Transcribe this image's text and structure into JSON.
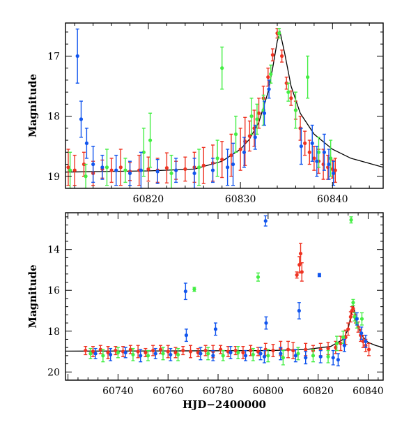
{
  "colors": {
    "red": "#ee3322",
    "green": "#44ee44",
    "blue": "#1155ee",
    "model": "#000000"
  },
  "chart_data": [
    {
      "type": "scatter",
      "title": "",
      "xlabel": "",
      "ylabel": "Magnitude",
      "xlim": [
        60811,
        60845.5
      ],
      "ylim": [
        16.45,
        19.2
      ],
      "y_inverted": true,
      "x_ticks": [
        60820,
        60830,
        60840
      ],
      "x_tick_labels": [
        "60820",
        "60830",
        "60840"
      ],
      "y_ticks": [
        17,
        18,
        19
      ],
      "y_tick_labels": [
        "17",
        "18",
        "19"
      ],
      "grid": false,
      "legend": "none",
      "model_curve": {
        "color": "model",
        "x": [
          60811,
          60815,
          60820,
          60825,
          60828,
          60830,
          60831,
          60832,
          60833,
          60833.5,
          60834.0,
          60834.3,
          60834.8,
          60835.5,
          60836.5,
          60838,
          60840,
          60842,
          60845.5
        ],
        "y": [
          18.93,
          18.92,
          18.91,
          18.88,
          18.75,
          18.55,
          18.38,
          18.1,
          17.6,
          17.2,
          16.75,
          16.6,
          16.95,
          17.5,
          17.95,
          18.3,
          18.55,
          18.7,
          18.85
        ]
      },
      "series": [
        {
          "name": "",
          "color": "red",
          "x": [
            60811.3,
            60812,
            60813,
            60814,
            60815,
            60816,
            60817,
            60818,
            60819,
            60820,
            60821,
            60822,
            60823,
            60824,
            60825,
            60826,
            60827,
            60828,
            60829,
            60830,
            60830.5,
            60831,
            60831.5,
            60832,
            60832.5,
            60833,
            60833.5,
            60834,
            60834.5,
            60835,
            60835.5,
            60836,
            60836.5,
            60837,
            60837.5,
            60838,
            60838.5,
            60839,
            60839.5,
            60840,
            60840.3
          ],
          "y": [
            18.85,
            18.9,
            18.8,
            18.95,
            18.88,
            18.9,
            18.85,
            18.92,
            18.9,
            18.88,
            18.9,
            18.86,
            18.9,
            18.88,
            18.85,
            18.82,
            18.78,
            18.72,
            18.65,
            18.55,
            18.42,
            18.33,
            18.2,
            17.95,
            17.7,
            17.35,
            16.98,
            16.62,
            17.0,
            17.45,
            17.7,
            17.9,
            18.2,
            18.45,
            18.6,
            18.7,
            18.75,
            18.8,
            18.85,
            18.88,
            18.9
          ],
          "err": [
            0.3,
            0.25,
            0.2,
            0.2,
            0.15,
            0.2,
            0.3,
            0.15,
            0.25,
            0.2,
            0.2,
            0.25,
            0.15,
            0.2,
            0.25,
            0.3,
            0.3,
            0.3,
            0.35,
            0.35,
            0.4,
            0.25,
            0.3,
            0.25,
            0.2,
            0.15,
            0.1,
            0.08,
            0.1,
            0.1,
            0.12,
            0.15,
            0.2,
            0.2,
            0.2,
            0.2,
            0.2,
            0.25,
            0.2,
            0.15,
            0.2
          ]
        },
        {
          "name": "",
          "color": "green",
          "x": [
            60811.5,
            60813.2,
            60815.5,
            60817.5,
            60819.5,
            60820.2,
            60822.5,
            60825.5,
            60827.5,
            60828,
            60829.5,
            60831.2,
            60831.8,
            60832.5,
            60833.3,
            60834.2,
            60835.2,
            60836,
            60837.3,
            60838.5,
            60839.8
          ],
          "y": [
            18.9,
            19.0,
            18.85,
            18.9,
            18.6,
            18.4,
            18.95,
            18.85,
            18.7,
            17.2,
            18.3,
            18.0,
            18.05,
            17.9,
            17.3,
            16.62,
            17.6,
            17.9,
            17.35,
            18.6,
            18.7
          ],
          "err": [
            0.3,
            0.2,
            0.3,
            0.2,
            0.4,
            0.45,
            0.3,
            0.3,
            0.3,
            0.35,
            0.3,
            0.3,
            0.25,
            0.25,
            0.15,
            0.08,
            0.15,
            0.3,
            0.35,
            0.25,
            0.3
          ]
        },
        {
          "name": "",
          "color": "blue",
          "x": [
            60812.3,
            60812.7,
            60813.3,
            60814,
            60815,
            60816.5,
            60818,
            60819.2,
            60821,
            60823,
            60825,
            60827,
            60828.6,
            60829.2,
            60830.4,
            60831.6,
            60832.6,
            60833.1,
            60836.6,
            60837.8,
            60838.3,
            60839.1,
            60839.6,
            60840.1
          ],
          "y": [
            17.0,
            18.05,
            18.45,
            18.8,
            18.85,
            18.9,
            18.95,
            18.9,
            18.92,
            18.9,
            18.95,
            18.9,
            18.85,
            18.8,
            18.6,
            18.35,
            17.95,
            17.55,
            18.5,
            18.45,
            18.75,
            18.6,
            18.8,
            18.95
          ],
          "err": [
            0.45,
            0.3,
            0.25,
            0.3,
            0.2,
            0.25,
            0.2,
            0.3,
            0.2,
            0.2,
            0.25,
            0.2,
            0.3,
            0.35,
            0.25,
            0.2,
            0.2,
            0.15,
            0.3,
            0.3,
            0.25,
            0.3,
            0.25,
            0.2
          ]
        }
      ]
    },
    {
      "type": "scatter",
      "title": "",
      "xlabel": "HJD−2400000",
      "ylabel": "Magnitude",
      "xlim": [
        60719,
        60846
      ],
      "ylim": [
        12.2,
        20.4
      ],
      "y_inverted": true,
      "x_ticks": [
        60740,
        60760,
        60780,
        60800,
        60820,
        60840
      ],
      "x_tick_labels": [
        "60740",
        "60760",
        "60780",
        "60800",
        "60820",
        "60840"
      ],
      "y_ticks": [
        14,
        16,
        18,
        20
      ],
      "y_tick_labels": [
        "14",
        "16",
        "18",
        "20"
      ],
      "grid": false,
      "legend": "none",
      "model_curve": {
        "color": "model",
        "x": [
          60719,
          60760,
          60800,
          60815,
          60825,
          60830,
          60832,
          60834,
          60836,
          60838,
          60840,
          60843,
          60846
        ],
        "y": [
          18.98,
          18.97,
          18.95,
          18.9,
          18.75,
          18.4,
          17.9,
          16.7,
          17.8,
          18.3,
          18.55,
          18.7,
          18.8
        ]
      },
      "series": [
        {
          "name": "",
          "color": "red",
          "x": [
            60727,
            60730,
            60733,
            60736,
            60739,
            60742,
            60745,
            60748,
            60751,
            60754,
            60757,
            60760,
            60763,
            60766,
            60769,
            60772,
            60775,
            60778,
            60781,
            60784,
            60787,
            60790,
            60793,
            60796,
            60799,
            60802,
            60805,
            60808,
            60810,
            60811.5,
            60812.5,
            60813,
            60813.5,
            60815,
            60818,
            60821,
            60824,
            60827,
            60829,
            60831,
            60832,
            60833,
            60833.5,
            60834,
            60835,
            60836,
            60837,
            60838,
            60839,
            60840.3
          ],
          "y": [
            18.95,
            19.0,
            18.9,
            19.05,
            18.95,
            19.0,
            18.9,
            19.0,
            19.05,
            18.95,
            18.9,
            19.0,
            19.05,
            18.95,
            19.0,
            19.05,
            18.95,
            19.0,
            18.9,
            19.0,
            18.95,
            19.05,
            18.95,
            19.0,
            18.9,
            18.95,
            18.85,
            18.9,
            18.95,
            15.25,
            14.75,
            14.2,
            15.1,
            18.9,
            18.95,
            18.9,
            18.85,
            18.8,
            18.6,
            18.3,
            17.9,
            17.3,
            17.0,
            16.9,
            17.4,
            17.8,
            18.2,
            18.5,
            18.7,
            18.9
          ],
          "err": [
            0.2,
            0.25,
            0.2,
            0.3,
            0.2,
            0.25,
            0.2,
            0.3,
            0.2,
            0.25,
            0.2,
            0.3,
            0.25,
            0.2,
            0.3,
            0.2,
            0.25,
            0.3,
            0.2,
            0.25,
            0.2,
            0.3,
            0.25,
            0.2,
            0.3,
            0.3,
            0.35,
            0.4,
            0.4,
            0.15,
            0.4,
            0.5,
            0.45,
            0.3,
            0.25,
            0.3,
            0.3,
            0.3,
            0.35,
            0.35,
            0.3,
            0.25,
            0.2,
            0.15,
            0.2,
            0.25,
            0.3,
            0.3,
            0.3,
            0.3
          ]
        },
        {
          "name": "",
          "color": "green",
          "x": [
            60729,
            60734,
            60740,
            60746,
            60752,
            60758,
            60764,
            60770.5,
            60776,
            60782,
            60788,
            60794,
            60796,
            60800,
            60806,
            60812,
            60818,
            60824,
            60827.5,
            60830,
            60833.2,
            60834,
            60834.6,
            60835.5,
            60837.5
          ],
          "y": [
            19.1,
            19.2,
            19.05,
            19.15,
            19.2,
            19.1,
            19.15,
            15.95,
            19.1,
            19.2,
            19.05,
            19.15,
            15.35,
            19.2,
            19.3,
            19.1,
            19.2,
            19.25,
            18.6,
            18.3,
            12.55,
            16.6,
            17.3,
            17.6,
            17.4
          ],
          "err": [
            0.25,
            0.3,
            0.25,
            0.3,
            0.25,
            0.3,
            0.3,
            0.1,
            0.3,
            0.25,
            0.3,
            0.3,
            0.2,
            0.3,
            0.35,
            0.3,
            0.3,
            0.3,
            0.35,
            0.3,
            0.15,
            0.15,
            0.2,
            0.25,
            0.3
          ]
        },
        {
          "name": "",
          "color": "blue",
          "x": [
            60731,
            60737,
            60743,
            60749,
            60755,
            60761,
            60767,
            60767.3,
            60773,
            60778,
            60779,
            60785,
            60791,
            60797,
            60798.5,
            60799,
            60799.2,
            60805,
            60811,
            60812.4,
            60815,
            60820.5,
            60821,
            60826,
            60828,
            60830.5,
            60835.5,
            60837.3,
            60839
          ],
          "y": [
            19.1,
            19.15,
            19.05,
            19.2,
            19.1,
            19.15,
            16.05,
            18.2,
            19.1,
            19.2,
            17.9,
            19.05,
            19.2,
            19.1,
            19.25,
            12.6,
            17.6,
            19.1,
            19.2,
            17.0,
            19.3,
            15.25,
            19.25,
            19.3,
            19.4,
            18.7,
            17.4,
            18.1,
            18.5
          ],
          "err": [
            0.25,
            0.3,
            0.25,
            0.3,
            0.25,
            0.3,
            0.4,
            0.3,
            0.3,
            0.25,
            0.3,
            0.3,
            0.25,
            0.3,
            0.3,
            0.25,
            0.3,
            0.3,
            0.3,
            0.4,
            0.3,
            0.08,
            0.3,
            0.35,
            0.3,
            0.3,
            0.3,
            0.3,
            0.3
          ]
        }
      ]
    }
  ]
}
